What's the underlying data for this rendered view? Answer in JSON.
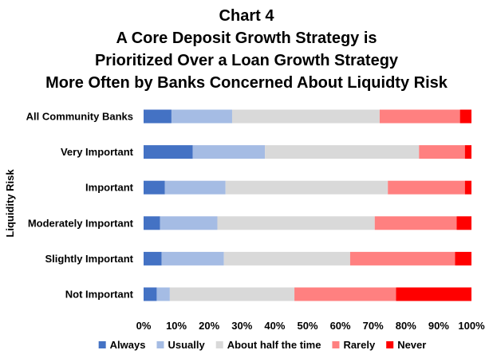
{
  "chart_data": {
    "type": "bar",
    "orientation": "horizontal",
    "stacked": true,
    "title_lines": [
      "Chart 4",
      "A Core Deposit Growth Strategy is",
      "Prioritized Over a Loan Growth Strategy",
      "More Often by Banks Concerned About Liquidty Risk"
    ],
    "ylabel": "Liquidity Risk",
    "xlabel": "",
    "xlim": [
      0,
      100
    ],
    "x_ticks": [
      "0%",
      "10%",
      "20%",
      "30%",
      "40%",
      "50%",
      "60%",
      "70%",
      "80%",
      "90%",
      "100%"
    ],
    "grid": false,
    "legend_position": "bottom",
    "categories": [
      "All Community Banks",
      "Very Important",
      "Important",
      "Moderately Important",
      "Slightly Important",
      "Not Important"
    ],
    "series": [
      {
        "name": "Always",
        "color": "#4472C4",
        "values": [
          8.5,
          15,
          6.5,
          5,
          5.5,
          4
        ]
      },
      {
        "name": "Usually",
        "color": "#A5BCE4",
        "values": [
          18.5,
          22,
          18.5,
          17.5,
          19,
          4
        ]
      },
      {
        "name": "About half the time",
        "color": "#D9D9D9",
        "values": [
          45,
          47,
          49.5,
          48,
          38.5,
          38
        ]
      },
      {
        "name": "Rarely",
        "color": "#FF8080",
        "values": [
          24.5,
          14,
          23.5,
          25,
          32,
          31
        ]
      },
      {
        "name": "Never",
        "color": "#FF0000",
        "values": [
          3.5,
          2,
          2,
          4.5,
          5,
          23
        ]
      }
    ]
  }
}
